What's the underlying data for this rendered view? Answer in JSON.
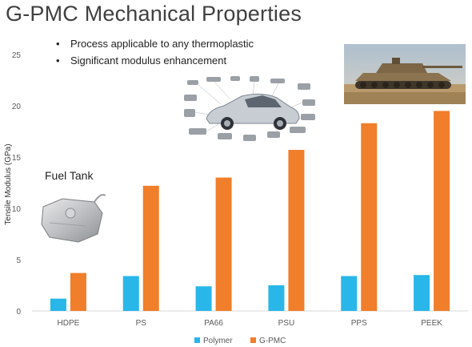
{
  "slide": {
    "title": "G-PMC Mechanical Properties",
    "bullets": [
      "Process applicable to any thermoplastic",
      "Significant modulus enhancement"
    ],
    "fuel_tank_label": "Fuel Tank"
  },
  "chart_data": {
    "type": "bar",
    "title": "",
    "xlabel": "",
    "ylabel": "Tensile Modulus  (GPa)",
    "categories": [
      "HDPE",
      "PS",
      "PA66",
      "PSU",
      "PPS",
      "PEEK"
    ],
    "series": [
      {
        "name": "Polymer",
        "color": "#29b6e8",
        "values": [
          1.2,
          3.4,
          2.4,
          2.5,
          3.4,
          3.5
        ]
      },
      {
        "name": "G-PMC",
        "color": "#f07e2a",
        "values": [
          3.7,
          12.2,
          13.0,
          15.7,
          18.3,
          19.5
        ]
      }
    ],
    "ylim": [
      0,
      25
    ],
    "yticks": [
      0,
      5,
      10,
      15,
      20,
      25
    ],
    "grid": false,
    "legend": "bottom"
  },
  "images": {
    "military_tank": "military-tank-photo",
    "car": "car-body-parts-diagram",
    "fuel_tank": "fuel-tank-photo"
  }
}
